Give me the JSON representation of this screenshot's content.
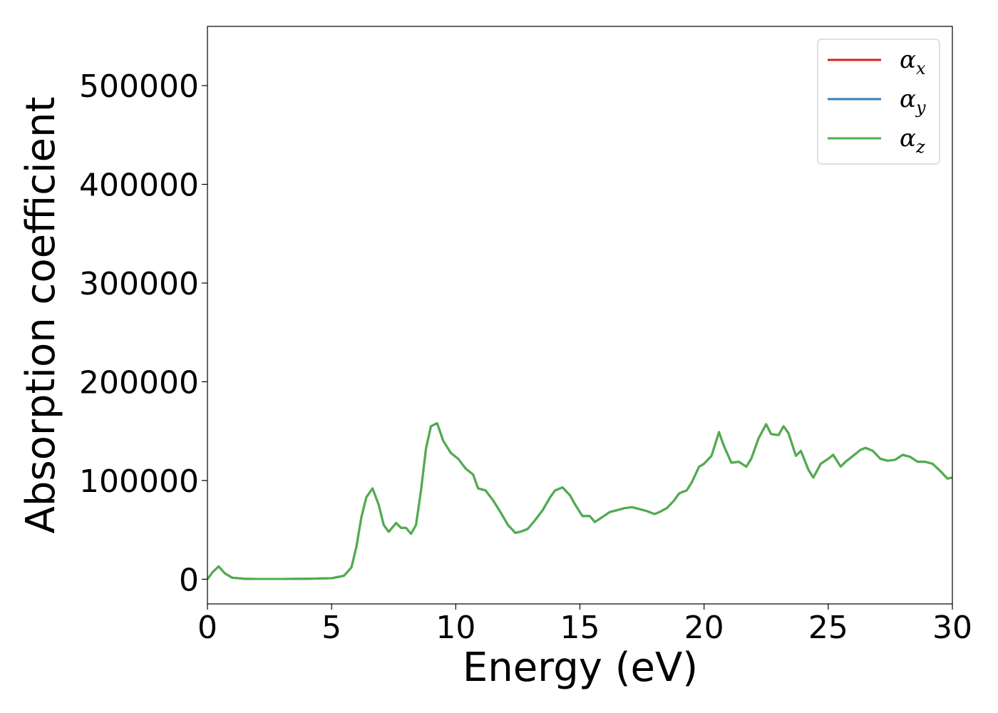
{
  "chart_data": {
    "type": "line",
    "xlabel": "Energy (eV)",
    "ylabel": "Absorption coefficient",
    "xlim": [
      0,
      30
    ],
    "ylim": [
      -25000,
      560000
    ],
    "xticks": [
      "0",
      "5",
      "10",
      "15",
      "20",
      "25",
      "30"
    ],
    "yticks": [
      "0",
      "100000",
      "200000",
      "300000",
      "400000",
      "500000"
    ],
    "grid": false,
    "legend_position": "top-right",
    "x": [
      0,
      0.2,
      0.45,
      0.7,
      1.0,
      1.5,
      2.0,
      3.0,
      4.0,
      5.0,
      5.5,
      5.8,
      6.0,
      6.2,
      6.4,
      6.65,
      6.9,
      7.1,
      7.3,
      7.6,
      7.8,
      8.0,
      8.2,
      8.4,
      8.6,
      8.8,
      9.0,
      9.25,
      9.5,
      9.8,
      10.1,
      10.4,
      10.7,
      10.9,
      11.2,
      11.5,
      11.8,
      12.1,
      12.4,
      12.6,
      12.9,
      13.2,
      13.5,
      13.8,
      14.0,
      14.3,
      14.6,
      14.8,
      15.1,
      15.4,
      15.6,
      15.9,
      16.2,
      16.5,
      16.8,
      17.1,
      17.4,
      17.7,
      18.0,
      18.2,
      18.5,
      18.8,
      19.0,
      19.3,
      19.5,
      19.8,
      20.0,
      20.3,
      20.6,
      20.8,
      21.1,
      21.4,
      21.7,
      21.9,
      22.2,
      22.5,
      22.7,
      23.0,
      23.2,
      23.4,
      23.7,
      23.9,
      24.2,
      24.4,
      24.7,
      25.0,
      25.2,
      25.5,
      25.7,
      26.0,
      26.3,
      26.5,
      26.8,
      27.1,
      27.4,
      27.7,
      28.0,
      28.3,
      28.6,
      28.9,
      29.2,
      29.5,
      29.8,
      30.0
    ],
    "series": [
      {
        "name": "αx",
        "color": "#e41a1c",
        "values": [
          0,
          7000,
          13000,
          6000,
          1500,
          500,
          300,
          300,
          500,
          1000,
          3500,
          12000,
          33000,
          63000,
          83000,
          92000,
          75000,
          55000,
          48000,
          57000,
          52000,
          52000,
          46000,
          55000,
          90000,
          132000,
          155000,
          158000,
          140000,
          128000,
          122000,
          112000,
          106000,
          92000,
          90000,
          80000,
          68000,
          55000,
          47000,
          48000,
          51000,
          60000,
          70000,
          83000,
          90000,
          93000,
          85000,
          76000,
          64000,
          64000,
          58000,
          63000,
          68000,
          70000,
          72000,
          73000,
          71000,
          69000,
          66000,
          68000,
          72000,
          80000,
          87000,
          90000,
          98000,
          114000,
          117000,
          125000,
          149000,
          135000,
          118000,
          119000,
          114000,
          122000,
          143000,
          157000,
          147000,
          146000,
          155000,
          148000,
          125000,
          130000,
          111000,
          103000,
          117000,
          122000,
          126000,
          114000,
          119000,
          125000,
          131000,
          133000,
          130000,
          122000,
          120000,
          121000,
          126000,
          124000,
          119000,
          119000,
          117000,
          110000,
          102000,
          103000
        ]
      },
      {
        "name": "αy",
        "color": "#377eb8",
        "values": [
          0,
          7000,
          13000,
          6000,
          1500,
          500,
          300,
          300,
          500,
          1000,
          3500,
          12000,
          33000,
          63000,
          83000,
          92000,
          75000,
          55000,
          48000,
          57000,
          52000,
          52000,
          46000,
          55000,
          90000,
          132000,
          155000,
          158000,
          140000,
          128000,
          122000,
          112000,
          106000,
          92000,
          90000,
          80000,
          68000,
          55000,
          47000,
          48000,
          51000,
          60000,
          70000,
          83000,
          90000,
          93000,
          85000,
          76000,
          64000,
          64000,
          58000,
          63000,
          68000,
          70000,
          72000,
          73000,
          71000,
          69000,
          66000,
          68000,
          72000,
          80000,
          87000,
          90000,
          98000,
          114000,
          117000,
          125000,
          149000,
          135000,
          118000,
          119000,
          114000,
          122000,
          143000,
          157000,
          147000,
          146000,
          155000,
          148000,
          125000,
          130000,
          111000,
          103000,
          117000,
          122000,
          126000,
          114000,
          119000,
          125000,
          131000,
          133000,
          130000,
          122000,
          120000,
          121000,
          126000,
          124000,
          119000,
          119000,
          117000,
          110000,
          102000,
          103000
        ]
      },
      {
        "name": "αz",
        "color": "#4daf4a",
        "values": [
          0,
          7000,
          13000,
          6000,
          1500,
          500,
          300,
          300,
          500,
          1000,
          3500,
          12000,
          33000,
          63000,
          83000,
          92000,
          75000,
          55000,
          48000,
          57000,
          52000,
          52000,
          46000,
          55000,
          90000,
          132000,
          155000,
          158000,
          140000,
          128000,
          122000,
          112000,
          106000,
          92000,
          90000,
          80000,
          68000,
          55000,
          47000,
          48000,
          51000,
          60000,
          70000,
          83000,
          90000,
          93000,
          85000,
          76000,
          64000,
          64000,
          58000,
          63000,
          68000,
          70000,
          72000,
          73000,
          71000,
          69000,
          66000,
          68000,
          72000,
          80000,
          87000,
          90000,
          98000,
          114000,
          117000,
          125000,
          149000,
          135000,
          118000,
          119000,
          114000,
          122000,
          143000,
          157000,
          147000,
          146000,
          155000,
          148000,
          125000,
          130000,
          111000,
          103000,
          117000,
          122000,
          126000,
          114000,
          119000,
          125000,
          131000,
          133000,
          130000,
          122000,
          120000,
          121000,
          126000,
          124000,
          119000,
          119000,
          117000,
          110000,
          102000,
          103000
        ]
      }
    ],
    "legend": [
      {
        "base": "α",
        "sub": "x",
        "color": "#e41a1c"
      },
      {
        "base": "α",
        "sub": "y",
        "color": "#377eb8"
      },
      {
        "base": "α",
        "sub": "z",
        "color": "#4daf4a"
      }
    ]
  }
}
